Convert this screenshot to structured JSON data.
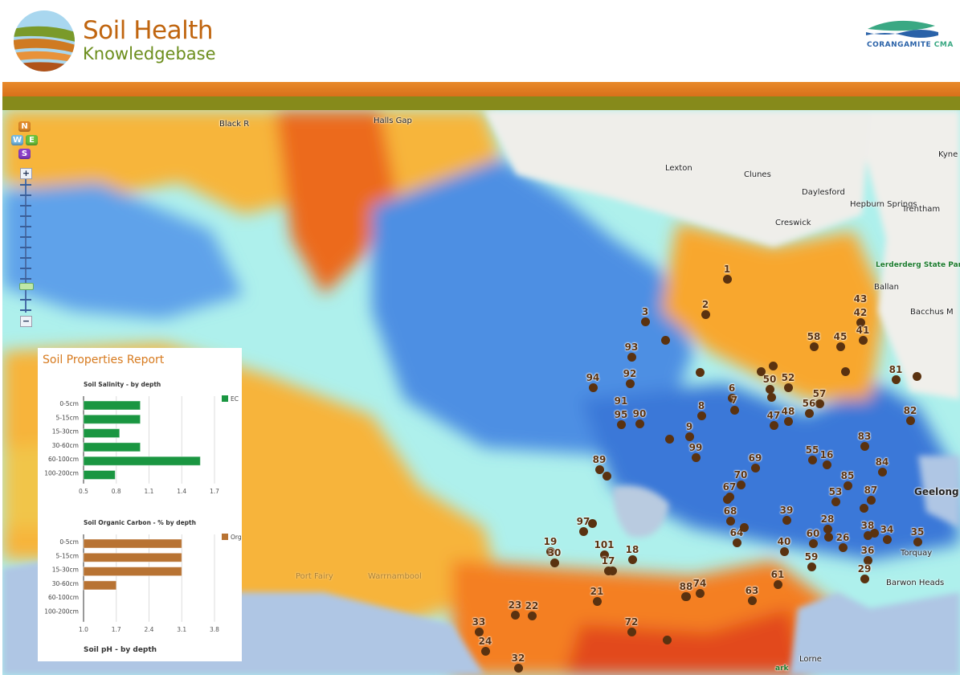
{
  "header": {
    "brand_line1": "Soil Health",
    "brand_line2": "Knowledgebase",
    "partner_logo_text_a": "CORANGAMITE",
    "partner_logo_text_b": "CMA"
  },
  "colors": {
    "brand_orange": "#c0650f",
    "brand_green": "#6c8e1d",
    "band_orange": "#e07b1c",
    "band_olive": "#868a1b",
    "marker": "#5a3210",
    "salinity_bar": "#1a9641",
    "carbon_bar": "#b87333"
  },
  "map": {
    "nav_buttons": [
      "N",
      "W",
      "E",
      "S"
    ],
    "zoom_in": "+",
    "zoom_out": "−",
    "places": [
      "Halls Gap",
      "Lexton",
      "Clunes",
      "Daylesford",
      "Hepburn Springs",
      "Trentham",
      "Creswick",
      "Ballan",
      "Bacchus M",
      "Kyne",
      "Geelong",
      "Lorne",
      "Port Fairy",
      "Warrnambool",
      "Torquay",
      "Barwon Heads",
      "Black R",
      "Lerderderg State Park",
      "ark"
    ],
    "markers": [
      "1",
      "2",
      "3",
      "93",
      "92",
      "94",
      "91",
      "95",
      "90",
      "8",
      "9",
      "99",
      "6",
      "7",
      "50",
      "52",
      "47",
      "48",
      "57",
      "56",
      "58",
      "45",
      "43",
      "42",
      "41",
      "81",
      "82",
      "83",
      "55",
      "16",
      "84",
      "85",
      "53",
      "87",
      "69",
      "70",
      "67",
      "68",
      "39",
      "89",
      "64",
      "28",
      "60",
      "26",
      "38",
      "34",
      "35",
      "40",
      "36",
      "59",
      "29",
      "61",
      "63",
      "88",
      "74",
      "21",
      "72",
      "97",
      "19",
      "30",
      "101",
      "17",
      "18",
      "23",
      "22",
      "33",
      "24",
      "32"
    ]
  },
  "report": {
    "title": "Soil Properties Report",
    "truncated_next_chart_title": "Soil pH - by depth"
  },
  "chart_data": [
    {
      "type": "bar",
      "orientation": "horizontal",
      "title": "Soil Salinity - by depth",
      "categories": [
        "0-5cm",
        "5-15cm",
        "15-30cm",
        "30-60cm",
        "60-100cm",
        "100-200cm"
      ],
      "series": [
        {
          "name": "EC",
          "values": [
            1.02,
            1.02,
            0.83,
            1.02,
            1.57,
            0.79
          ],
          "color": "#1a9641"
        }
      ],
      "xlim": [
        0.5,
        1.7
      ],
      "xticks": [
        "0.5",
        "0.8",
        "1.1",
        "1.4",
        "1.7"
      ],
      "grid": true,
      "legend": "right"
    },
    {
      "type": "bar",
      "orientation": "horizontal",
      "title": "Soil Organic Carbon - % by depth",
      "categories": [
        "0-5cm",
        "5-15cm",
        "15-30cm",
        "30-60cm",
        "60-100cm",
        "100-200cm"
      ],
      "series": [
        {
          "name": "Org",
          "values": [
            3.1,
            3.1,
            3.1,
            1.7,
            null,
            null
          ],
          "color": "#b87333"
        }
      ],
      "xlim": [
        1.0,
        3.8
      ],
      "xticks": [
        "1.0",
        "1.7",
        "2.4",
        "3.1",
        "3.8"
      ],
      "grid": true,
      "legend": "right"
    }
  ]
}
